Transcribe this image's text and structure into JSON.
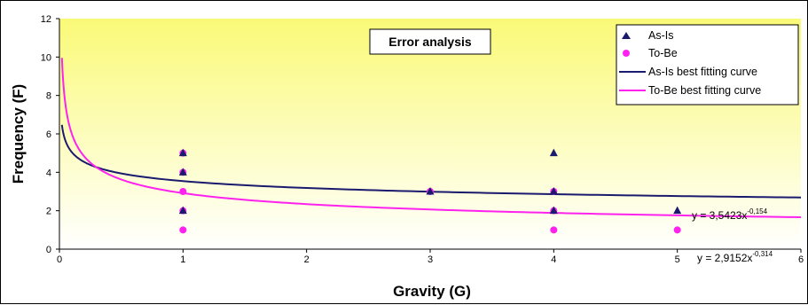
{
  "chart_data": {
    "type": "scatter",
    "title": "Error analysis",
    "xlabel": "Gravity (G)",
    "ylabel": "Frequency (F)",
    "xlim": [
      0,
      6
    ],
    "ylim": [
      0,
      12
    ],
    "x_ticks": [
      "0",
      "1",
      "2",
      "3",
      "4",
      "5",
      "6"
    ],
    "y_ticks": [
      "0",
      "2",
      "4",
      "6",
      "8",
      "10",
      "12"
    ],
    "grid": false,
    "legend_position": "top-right",
    "colors": {
      "as_is": "#1a1a6e",
      "to_be": "#ff22ee",
      "plot_bg_top": "#fafa78",
      "plot_bg_bottom": "#ffffff"
    },
    "series": [
      {
        "name": "As-Is",
        "kind": "points",
        "marker": "triangle",
        "points": [
          [
            1,
            5
          ],
          [
            1,
            4
          ],
          [
            1,
            2
          ],
          [
            3,
            3
          ],
          [
            4,
            5
          ],
          [
            4,
            3
          ],
          [
            4,
            2
          ],
          [
            5,
            2
          ]
        ]
      },
      {
        "name": "To-Be",
        "kind": "points",
        "marker": "circle",
        "points": [
          [
            1,
            5
          ],
          [
            1,
            4
          ],
          [
            1,
            3
          ],
          [
            1,
            2
          ],
          [
            1,
            1
          ],
          [
            3,
            3
          ],
          [
            4,
            3
          ],
          [
            4,
            2
          ],
          [
            4,
            1
          ],
          [
            5,
            1
          ]
        ]
      },
      {
        "name": "As-Is best fitting curve",
        "kind": "curve",
        "a": 3.5423,
        "b": -0.154,
        "equation_prefix": "y = 3,5423x",
        "equation_exp": "-0,154"
      },
      {
        "name": "To-Be best fitting curve",
        "kind": "curve",
        "a": 2.9152,
        "b": -0.314,
        "equation_prefix": "y = 2,9152x",
        "equation_exp": "-0,314"
      }
    ]
  }
}
